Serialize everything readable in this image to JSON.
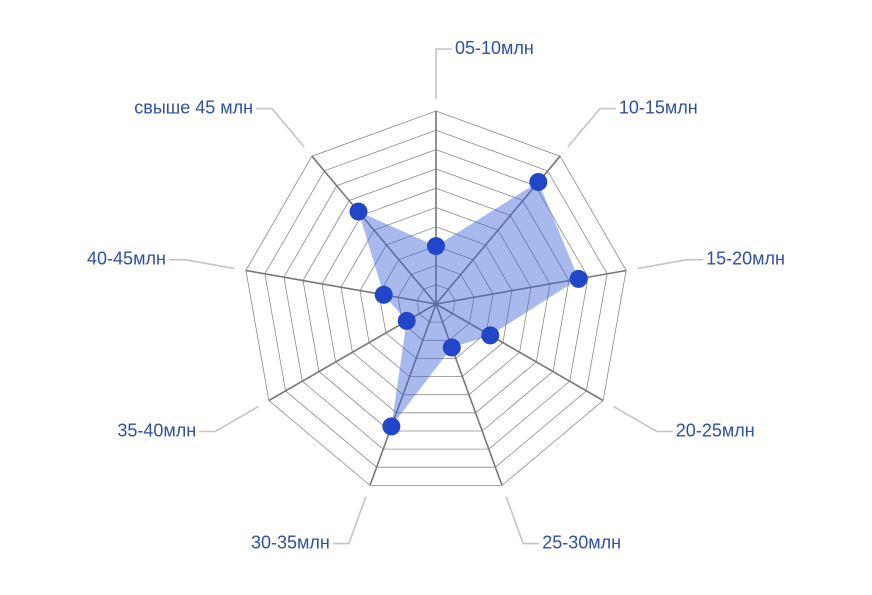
{
  "chart_data": {
    "type": "radar",
    "categories": [
      "05-10млн",
      "10-15млн",
      "15-20млн",
      "20-25млн",
      "25-30млн",
      "30-35млн",
      "35-40млн",
      "40-45млн",
      "свыше 45 млн"
    ],
    "values": [
      60,
      165,
      150,
      65,
      48,
      135,
      35,
      55,
      125
    ],
    "rmax": 200,
    "grid_levels": 10,
    "colors": {
      "area": "#3d63d6",
      "point": "#2146c7",
      "label": "#2f4fa8",
      "grid": "#8a8a8a"
    }
  }
}
